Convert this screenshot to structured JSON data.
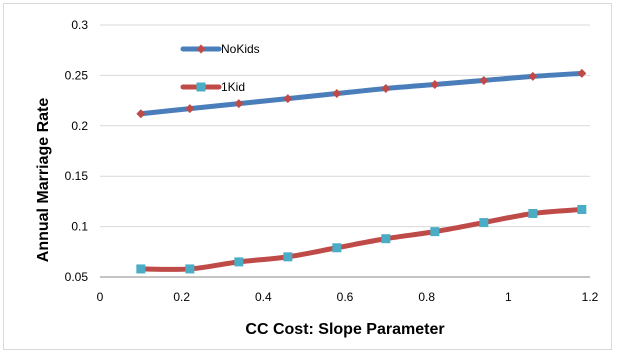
{
  "chart_data": {
    "type": "line",
    "xlabel": "CC Cost: Slope Parameter",
    "ylabel": "Annual Marriage Rate",
    "xlim": [
      0,
      1.2
    ],
    "ylim": [
      0.05,
      0.3
    ],
    "xticks": [
      0,
      0.2,
      0.4,
      0.6,
      0.8,
      1,
      1.2
    ],
    "xtick_labels": [
      "0",
      "0.2",
      "0.4",
      "0.6",
      "0.8",
      "1",
      "1.2"
    ],
    "yticks": [
      0.05,
      0.1,
      0.15,
      0.2,
      0.25,
      0.3
    ],
    "ytick_labels": [
      "0.05",
      "0.1",
      "0.15",
      "0.2",
      "0.25",
      "0.3"
    ],
    "grid": "horizontal",
    "legend": "top-left, inside plot",
    "series": [
      {
        "name": "NoKids",
        "line_color": "#4a7ebb",
        "marker": "diamond",
        "marker_color": "#be4b48",
        "x": [
          0.1,
          0.22,
          0.34,
          0.46,
          0.58,
          0.7,
          0.82,
          0.94,
          1.06,
          1.18
        ],
        "values": [
          0.212,
          0.217,
          0.222,
          0.227,
          0.232,
          0.237,
          0.241,
          0.245,
          0.249,
          0.252
        ]
      },
      {
        "name": "1Kid",
        "line_color": "#be4b48",
        "marker": "square",
        "marker_color": "#4bacc6",
        "x": [
          0.1,
          0.22,
          0.34,
          0.46,
          0.58,
          0.7,
          0.82,
          0.94,
          1.06,
          1.18
        ],
        "values": [
          0.058,
          0.058,
          0.065,
          0.07,
          0.079,
          0.088,
          0.095,
          0.104,
          0.113,
          0.117
        ]
      }
    ]
  }
}
